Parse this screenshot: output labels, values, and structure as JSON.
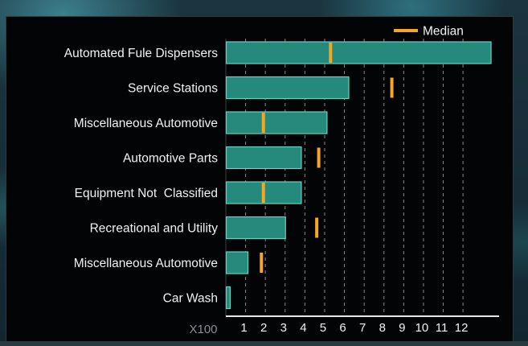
{
  "chart_data": {
    "type": "bar",
    "orientation": "horizontal",
    "categories": [
      "Automated Fule Dispensers",
      "Service Stations",
      "Miscellaneous Automotive",
      "Automotive Parts",
      "Equipment Not  Classified",
      "Recreational and Utility",
      "Miscellaneous Automotive",
      "Car Wash"
    ],
    "series": [
      {
        "values": [
          13.4,
          6.2,
          5.1,
          3.8,
          3.8,
          3.0,
          1.1,
          0.2
        ]
      },
      {
        "name": "Median",
        "values": [
          5.3,
          8.4,
          1.9,
          4.7,
          1.9,
          4.6,
          1.8,
          null
        ]
      }
    ],
    "xticks": [
      "1",
      "2",
      "3",
      "4",
      "5",
      "6",
      "7",
      "8",
      "9",
      "10",
      "11",
      "12"
    ],
    "xlim": [
      0,
      13.5
    ],
    "x_scale_label": "X100",
    "legend": {
      "label": "Median",
      "position": "top-right"
    },
    "grid": {
      "vertical": true,
      "style": "dashed"
    },
    "colors": {
      "bar": "#25897c",
      "bar_edge": "#63d3c2",
      "median": "#f5a623",
      "text": "#f2f2f2",
      "grid": "#8a8a8a"
    }
  }
}
